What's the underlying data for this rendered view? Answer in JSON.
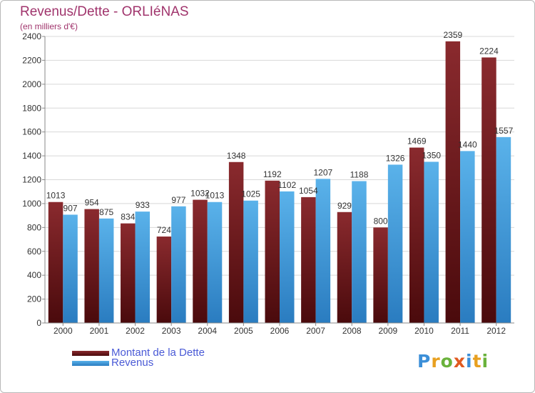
{
  "title": "Revenus/Dette - ORLIéNAS",
  "subtitle": "(en milliers d'€)",
  "colors": {
    "title": "#a0346c",
    "debt": "#7a1e22",
    "revenue": "#4aa3e0",
    "legend_text": "#4a5ad6",
    "grid": "#d8d8d8",
    "axis": "#888888"
  },
  "legend": {
    "debt_label": "Montant de la Dette",
    "revenue_label": "Revenus"
  },
  "logo": {
    "text": "Proxiti"
  },
  "chart_data": {
    "type": "bar",
    "title": "Revenus/Dette - ORLIéNAS",
    "subtitle": "(en milliers d'€)",
    "categories": [
      "2000",
      "2001",
      "2002",
      "2003",
      "2004",
      "2005",
      "2006",
      "2007",
      "2008",
      "2009",
      "2010",
      "2011",
      "2012"
    ],
    "series": [
      {
        "name": "Montant de la Dette",
        "color": "#7a1e22",
        "values": [
          1013,
          954,
          834,
          724,
          1032,
          1348,
          1192,
          1054,
          929,
          800,
          1469,
          2359,
          2224
        ]
      },
      {
        "name": "Revenus",
        "color": "#4aa3e0",
        "values": [
          907,
          875,
          933,
          977,
          1013,
          1025,
          1102,
          1207,
          1188,
          1326,
          1350,
          1440,
          1557
        ]
      }
    ],
    "ylim": [
      0,
      2400
    ],
    "yticks": [
      0,
      200,
      400,
      600,
      800,
      1000,
      1200,
      1400,
      1600,
      1800,
      2000,
      2200,
      2400
    ],
    "grid": true,
    "legend_position": "bottom-left"
  }
}
